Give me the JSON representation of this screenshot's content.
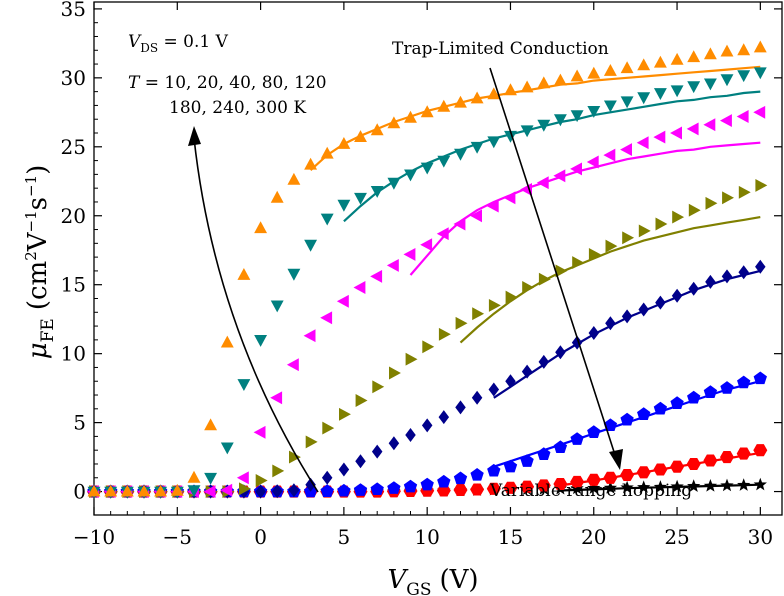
{
  "chart_data": {
    "type": "scatter",
    "title": "",
    "xlabel": "V_GS (V)",
    "ylabel": "μ_FE (cm²V⁻¹s⁻¹)",
    "xlim": [
      -10,
      31.3
    ],
    "ylim": [
      -1.7,
      35.5
    ],
    "xticks": [
      -10,
      -5,
      0,
      5,
      10,
      15,
      20,
      25,
      30
    ],
    "xtick_labels": [
      "−10",
      "−5",
      "0",
      "5",
      "10",
      "15",
      "20",
      "25",
      "30"
    ],
    "yticks": [
      0,
      5,
      10,
      15,
      20,
      25,
      30,
      35
    ],
    "ytick_labels": [
      "0",
      "5",
      "10",
      "15",
      "20",
      "25",
      "30",
      "35"
    ],
    "grid": false,
    "xlabel_parts": {
      "main": "V",
      "sub": "GS",
      "unit": "(V)"
    },
    "ylabel_parts": {
      "main": "μ",
      "sub": "FE",
      "unit_open": "(cm",
      "sq": "2",
      "v": "V",
      "vexp": "−1",
      "s": "s",
      "sexp": "−1",
      "unit_close": ")"
    },
    "annotations": {
      "vds": {
        "main": "V",
        "sub": "DS",
        "rest": " = 0.1 V"
      },
      "temps_line1": {
        "main": "T",
        "rest": " = 10,  20,  40,  80,  120"
      },
      "temps_line2": "180,  240,  300 K",
      "trap": "Trap-Limited Conduction",
      "vrh": "Variable range hopping"
    },
    "series": [
      {
        "name": "10 K",
        "color": "#000000",
        "marker": "star",
        "x": [
          -10,
          -9,
          -8,
          -7,
          -6,
          -5,
          -4,
          -3,
          -2,
          -1,
          0,
          1,
          2,
          3,
          4,
          5,
          6,
          7,
          8,
          9,
          10,
          11,
          12,
          13,
          14,
          15,
          16,
          17,
          18,
          19,
          20,
          21,
          22,
          23,
          24,
          25,
          26,
          27,
          28,
          29,
          30
        ],
        "y": [
          0,
          0,
          0,
          0,
          0,
          0,
          0,
          0,
          0,
          0,
          0,
          0,
          0,
          0,
          0,
          0,
          0,
          0.02,
          0.03,
          0.04,
          0.05,
          0.06,
          0.08,
          0.1,
          0.12,
          0.14,
          0.16,
          0.18,
          0.2,
          0.22,
          0.24,
          0.26,
          0.28,
          0.3,
          0.32,
          0.35,
          0.38,
          0.4,
          0.43,
          0.46,
          0.5
        ],
        "fit_x": [
          18,
          19,
          20,
          21,
          22,
          23,
          24,
          25,
          26,
          27,
          28,
          29,
          30
        ],
        "fit_y": [
          0.08,
          0.12,
          0.16,
          0.2,
          0.24,
          0.28,
          0.31,
          0.34,
          0.37,
          0.4,
          0.43,
          0.46,
          0.5
        ]
      },
      {
        "name": "20 K",
        "color": "#ff0000",
        "marker": "hexagon",
        "x": [
          -10,
          -9,
          -8,
          -7,
          -6,
          -5,
          -4,
          -3,
          -2,
          -1,
          0,
          1,
          2,
          3,
          4,
          5,
          6,
          7,
          8,
          9,
          10,
          11,
          12,
          13,
          14,
          15,
          16,
          17,
          18,
          19,
          20,
          21,
          22,
          23,
          24,
          25,
          26,
          27,
          28,
          29,
          30
        ],
        "y": [
          0,
          0,
          0,
          0,
          0,
          0,
          0,
          0,
          0,
          0,
          0,
          0,
          0,
          0,
          0,
          0,
          0,
          0,
          0.02,
          0.04,
          0.06,
          0.08,
          0.11,
          0.15,
          0.2,
          0.27,
          0.35,
          0.45,
          0.55,
          0.7,
          0.85,
          1.0,
          1.2,
          1.4,
          1.6,
          1.8,
          2.0,
          2.25,
          2.5,
          2.75,
          3.0
        ],
        "fit_x": [
          18,
          19,
          20,
          21,
          22,
          23,
          24,
          25,
          26,
          27,
          28,
          29,
          30
        ],
        "fit_y": [
          0.45,
          0.62,
          0.8,
          1.0,
          1.2,
          1.4,
          1.6,
          1.8,
          2.0,
          2.2,
          2.4,
          2.6,
          2.8
        ]
      },
      {
        "name": "40 K",
        "color": "#0000ff",
        "marker": "pentagon",
        "x": [
          -10,
          -9,
          -8,
          -7,
          -6,
          -5,
          -4,
          -3,
          -2,
          -1,
          0,
          1,
          2,
          3,
          4,
          5,
          6,
          7,
          8,
          9,
          10,
          11,
          12,
          13,
          14,
          15,
          16,
          17,
          18,
          19,
          20,
          21,
          22,
          23,
          24,
          25,
          26,
          27,
          28,
          29,
          30
        ],
        "y": [
          0,
          0,
          0,
          0,
          0,
          0,
          0,
          0,
          0,
          0,
          0,
          0,
          0,
          0,
          0.02,
          0.05,
          0.1,
          0.16,
          0.24,
          0.35,
          0.5,
          0.7,
          0.95,
          1.2,
          1.5,
          1.8,
          2.2,
          2.7,
          3.2,
          3.8,
          4.3,
          4.8,
          5.2,
          5.6,
          6.0,
          6.4,
          6.8,
          7.2,
          7.5,
          7.9,
          8.2
        ],
        "fit_x": [
          14,
          15,
          16,
          17,
          18,
          19,
          20,
          21,
          22,
          23,
          24,
          25,
          26,
          27,
          28,
          29,
          30
        ],
        "fit_y": [
          1.8,
          2.2,
          2.6,
          3.0,
          3.4,
          3.8,
          4.2,
          4.6,
          5.0,
          5.4,
          5.8,
          6.2,
          6.6,
          7.0,
          7.4,
          7.7,
          8.0
        ]
      },
      {
        "name": "80 K",
        "color": "#00008b",
        "marker": "diamond",
        "x": [
          -10,
          -9,
          -8,
          -7,
          -6,
          -5,
          -4,
          -3,
          -2,
          -1,
          0,
          1,
          2,
          3,
          4,
          5,
          6,
          7,
          8,
          9,
          10,
          11,
          12,
          13,
          14,
          15,
          16,
          17,
          18,
          19,
          20,
          21,
          22,
          23,
          24,
          25,
          26,
          27,
          28,
          29,
          30
        ],
        "y": [
          0,
          0,
          0,
          0,
          0,
          0,
          0,
          0,
          0,
          0,
          0,
          0.02,
          0.1,
          0.5,
          1.0,
          1.6,
          2.2,
          2.9,
          3.5,
          4.1,
          4.8,
          5.4,
          6.1,
          6.8,
          7.4,
          8.0,
          8.7,
          9.4,
          10.1,
          10.8,
          11.5,
          12.2,
          12.7,
          13.2,
          13.7,
          14.2,
          14.7,
          15.2,
          15.6,
          15.9,
          16.3
        ],
        "fit_x": [
          14,
          15,
          16,
          17,
          18,
          19,
          20,
          21,
          22,
          23,
          24,
          25,
          26,
          27,
          28,
          29,
          30
        ],
        "fit_y": [
          6.8,
          7.6,
          8.4,
          9.2,
          10.0,
          10.7,
          11.4,
          12.0,
          12.6,
          13.1,
          13.6,
          14.1,
          14.6,
          15.0,
          15.4,
          15.7,
          16.0
        ]
      },
      {
        "name": "120 K",
        "color": "#808000",
        "marker": "triangle-right",
        "x": [
          -10,
          -9,
          -8,
          -7,
          -6,
          -5,
          -4,
          -3,
          -2,
          -1,
          0,
          1,
          2,
          3,
          4,
          5,
          6,
          7,
          8,
          9,
          10,
          11,
          12,
          13,
          14,
          15,
          16,
          17,
          18,
          19,
          20,
          21,
          22,
          23,
          24,
          25,
          26,
          27,
          28,
          29,
          30
        ],
        "y": [
          0,
          0,
          0,
          0,
          0,
          0,
          0,
          0,
          0,
          0.2,
          0.8,
          1.5,
          2.5,
          3.6,
          4.6,
          5.6,
          6.6,
          7.6,
          8.6,
          9.6,
          10.5,
          11.4,
          12.2,
          12.9,
          13.5,
          14.1,
          14.8,
          15.4,
          16.0,
          16.6,
          17.2,
          17.8,
          18.4,
          18.9,
          19.4,
          19.9,
          20.4,
          20.9,
          21.3,
          21.7,
          22.2
        ],
        "fit_x": [
          12,
          13,
          14,
          15,
          16,
          17,
          18,
          19,
          20,
          21,
          22,
          23,
          24,
          25,
          26,
          27,
          28,
          29,
          30
        ],
        "fit_y": [
          10.8,
          11.9,
          12.9,
          13.8,
          14.6,
          15.3,
          15.9,
          16.4,
          16.9,
          17.4,
          17.8,
          18.2,
          18.5,
          18.8,
          19.1,
          19.3,
          19.5,
          19.7,
          19.9
        ]
      },
      {
        "name": "180 K",
        "color": "#ff00ff",
        "marker": "triangle-left",
        "x": [
          -10,
          -9,
          -8,
          -7,
          -6,
          -5,
          -4,
          -3,
          -2,
          -1,
          0,
          1,
          2,
          3,
          4,
          5,
          6,
          7,
          8,
          9,
          10,
          11,
          12,
          13,
          14,
          15,
          16,
          17,
          18,
          19,
          20,
          21,
          22,
          23,
          24,
          25,
          26,
          27,
          28,
          29,
          30
        ],
        "y": [
          0,
          0,
          0,
          0,
          0,
          0,
          0,
          0,
          0.1,
          1.0,
          4.3,
          6.8,
          9.2,
          11.3,
          12.6,
          13.8,
          14.8,
          15.6,
          16.4,
          17.2,
          17.9,
          18.7,
          19.4,
          20.0,
          20.7,
          21.3,
          21.9,
          22.4,
          22.9,
          23.4,
          23.9,
          24.4,
          24.8,
          25.3,
          25.7,
          26.0,
          26.3,
          26.6,
          26.9,
          27.2,
          27.5
        ],
        "fit_x": [
          9,
          10,
          11,
          12,
          13,
          14,
          15,
          16,
          17,
          18,
          19,
          20,
          21,
          22,
          23,
          24,
          25,
          26,
          27,
          28,
          29,
          30
        ],
        "fit_y": [
          15.7,
          17.1,
          18.5,
          19.6,
          20.4,
          21.0,
          21.5,
          22.0,
          22.4,
          22.8,
          23.2,
          23.5,
          23.8,
          24.1,
          24.3,
          24.5,
          24.7,
          24.8,
          25.0,
          25.1,
          25.2,
          25.3
        ]
      },
      {
        "name": "240 K",
        "color": "#008080",
        "marker": "triangle-down",
        "x": [
          -10,
          -9,
          -8,
          -7,
          -6,
          -5,
          -4,
          -3,
          -2,
          -1,
          0,
          1,
          2,
          3,
          4,
          5,
          6,
          7,
          8,
          9,
          10,
          11,
          12,
          13,
          14,
          15,
          16,
          17,
          18,
          19,
          20,
          21,
          22,
          23,
          24,
          25,
          26,
          27,
          28,
          29,
          30
        ],
        "y": [
          0,
          0,
          0,
          0,
          0,
          0,
          0.1,
          1.0,
          3.2,
          7.8,
          11.0,
          13.5,
          15.8,
          17.9,
          19.8,
          20.8,
          21.3,
          21.8,
          22.4,
          23.0,
          23.5,
          24.0,
          24.5,
          25.0,
          25.4,
          25.8,
          26.2,
          26.6,
          27.0,
          27.3,
          27.6,
          28.0,
          28.3,
          28.6,
          28.9,
          29.1,
          29.4,
          29.6,
          29.9,
          30.2,
          30.4
        ],
        "fit_x": [
          5,
          6,
          7,
          8,
          9,
          10,
          11,
          12,
          13,
          14,
          15,
          16,
          17,
          18,
          19,
          20,
          21,
          22,
          23,
          24,
          25,
          26,
          27,
          28,
          29,
          30
        ],
        "fit_y": [
          19.6,
          20.7,
          21.7,
          22.5,
          23.2,
          23.8,
          24.3,
          24.8,
          25.2,
          25.6,
          25.9,
          26.2,
          26.5,
          26.8,
          27.0,
          27.3,
          27.5,
          27.7,
          27.9,
          28.1,
          28.3,
          28.4,
          28.6,
          28.7,
          28.9,
          29.0
        ]
      },
      {
        "name": "300 K",
        "color": "#ff8c00",
        "marker": "triangle-up",
        "x": [
          -10,
          -9,
          -8,
          -7,
          -6,
          -5,
          -4,
          -3,
          -2,
          -1,
          0,
          1,
          2,
          3,
          4,
          5,
          6,
          7,
          8,
          9,
          10,
          11,
          12,
          13,
          14,
          15,
          16,
          17,
          18,
          19,
          20,
          21,
          22,
          23,
          24,
          25,
          26,
          27,
          28,
          29,
          30
        ],
        "y": [
          0,
          0,
          0,
          0,
          0,
          0.05,
          1.0,
          4.8,
          10.8,
          15.7,
          19.1,
          21.3,
          22.6,
          23.7,
          24.5,
          25.2,
          25.7,
          26.2,
          26.7,
          27.1,
          27.5,
          27.9,
          28.2,
          28.5,
          28.8,
          29.1,
          29.3,
          29.6,
          29.8,
          30.1,
          30.3,
          30.5,
          30.7,
          30.9,
          31.1,
          31.3,
          31.5,
          31.7,
          31.9,
          32.0,
          32.2
        ],
        "fit_x": [
          3,
          4,
          5,
          6,
          7,
          8,
          9,
          10,
          11,
          12,
          13,
          14,
          15,
          16,
          17,
          18,
          19,
          20,
          21,
          22,
          23,
          24,
          25,
          26,
          27,
          28,
          29,
          30
        ],
        "fit_y": [
          23.3,
          24.4,
          25.2,
          25.8,
          26.3,
          26.8,
          27.2,
          27.6,
          27.9,
          28.2,
          28.5,
          28.7,
          28.9,
          29.1,
          29.3,
          29.5,
          29.6,
          29.8,
          29.9,
          30.0,
          30.1,
          30.2,
          30.3,
          30.4,
          30.5,
          30.6,
          30.7,
          30.8
        ]
      }
    ]
  }
}
